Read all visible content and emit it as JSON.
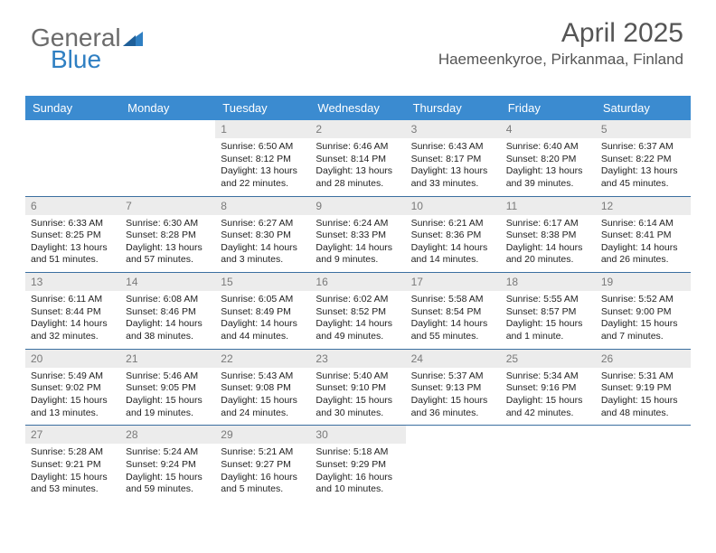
{
  "logo": {
    "word1": "General",
    "word2": "Blue",
    "word1_color": "#6b6b6b",
    "word2_color": "#2f7fc2",
    "triangle_color": "#2f7fc2"
  },
  "title": "April 2025",
  "subtitle": "Haemeenkyroe, Pirkanmaa, Finland",
  "colors": {
    "header_bg": "#3b8bd0",
    "header_text": "#ffffff",
    "row_divider": "#3b6fa0",
    "daynum_bg": "#ececec",
    "daynum_text": "#7a7a7a",
    "body_text": "#222222",
    "page_bg": "#ffffff"
  },
  "fonts": {
    "title_pt": 30,
    "subtitle_pt": 17,
    "header_pt": 13,
    "daynum_pt": 12,
    "body_pt": 10.5
  },
  "day_headers": [
    "Sunday",
    "Monday",
    "Tuesday",
    "Wednesday",
    "Thursday",
    "Friday",
    "Saturday"
  ],
  "weeks": [
    [
      {
        "empty": true
      },
      {
        "empty": true
      },
      {
        "n": "1",
        "sr": "Sunrise: 6:50 AM",
        "ss": "Sunset: 8:12 PM",
        "dl1": "Daylight: 13 hours",
        "dl2": "and 22 minutes."
      },
      {
        "n": "2",
        "sr": "Sunrise: 6:46 AM",
        "ss": "Sunset: 8:14 PM",
        "dl1": "Daylight: 13 hours",
        "dl2": "and 28 minutes."
      },
      {
        "n": "3",
        "sr": "Sunrise: 6:43 AM",
        "ss": "Sunset: 8:17 PM",
        "dl1": "Daylight: 13 hours",
        "dl2": "and 33 minutes."
      },
      {
        "n": "4",
        "sr": "Sunrise: 6:40 AM",
        "ss": "Sunset: 8:20 PM",
        "dl1": "Daylight: 13 hours",
        "dl2": "and 39 minutes."
      },
      {
        "n": "5",
        "sr": "Sunrise: 6:37 AM",
        "ss": "Sunset: 8:22 PM",
        "dl1": "Daylight: 13 hours",
        "dl2": "and 45 minutes."
      }
    ],
    [
      {
        "n": "6",
        "sr": "Sunrise: 6:33 AM",
        "ss": "Sunset: 8:25 PM",
        "dl1": "Daylight: 13 hours",
        "dl2": "and 51 minutes."
      },
      {
        "n": "7",
        "sr": "Sunrise: 6:30 AM",
        "ss": "Sunset: 8:28 PM",
        "dl1": "Daylight: 13 hours",
        "dl2": "and 57 minutes."
      },
      {
        "n": "8",
        "sr": "Sunrise: 6:27 AM",
        "ss": "Sunset: 8:30 PM",
        "dl1": "Daylight: 14 hours",
        "dl2": "and 3 minutes."
      },
      {
        "n": "9",
        "sr": "Sunrise: 6:24 AM",
        "ss": "Sunset: 8:33 PM",
        "dl1": "Daylight: 14 hours",
        "dl2": "and 9 minutes."
      },
      {
        "n": "10",
        "sr": "Sunrise: 6:21 AM",
        "ss": "Sunset: 8:36 PM",
        "dl1": "Daylight: 14 hours",
        "dl2": "and 14 minutes."
      },
      {
        "n": "11",
        "sr": "Sunrise: 6:17 AM",
        "ss": "Sunset: 8:38 PM",
        "dl1": "Daylight: 14 hours",
        "dl2": "and 20 minutes."
      },
      {
        "n": "12",
        "sr": "Sunrise: 6:14 AM",
        "ss": "Sunset: 8:41 PM",
        "dl1": "Daylight: 14 hours",
        "dl2": "and 26 minutes."
      }
    ],
    [
      {
        "n": "13",
        "sr": "Sunrise: 6:11 AM",
        "ss": "Sunset: 8:44 PM",
        "dl1": "Daylight: 14 hours",
        "dl2": "and 32 minutes."
      },
      {
        "n": "14",
        "sr": "Sunrise: 6:08 AM",
        "ss": "Sunset: 8:46 PM",
        "dl1": "Daylight: 14 hours",
        "dl2": "and 38 minutes."
      },
      {
        "n": "15",
        "sr": "Sunrise: 6:05 AM",
        "ss": "Sunset: 8:49 PM",
        "dl1": "Daylight: 14 hours",
        "dl2": "and 44 minutes."
      },
      {
        "n": "16",
        "sr": "Sunrise: 6:02 AM",
        "ss": "Sunset: 8:52 PM",
        "dl1": "Daylight: 14 hours",
        "dl2": "and 49 minutes."
      },
      {
        "n": "17",
        "sr": "Sunrise: 5:58 AM",
        "ss": "Sunset: 8:54 PM",
        "dl1": "Daylight: 14 hours",
        "dl2": "and 55 minutes."
      },
      {
        "n": "18",
        "sr": "Sunrise: 5:55 AM",
        "ss": "Sunset: 8:57 PM",
        "dl1": "Daylight: 15 hours",
        "dl2": "and 1 minute."
      },
      {
        "n": "19",
        "sr": "Sunrise: 5:52 AM",
        "ss": "Sunset: 9:00 PM",
        "dl1": "Daylight: 15 hours",
        "dl2": "and 7 minutes."
      }
    ],
    [
      {
        "n": "20",
        "sr": "Sunrise: 5:49 AM",
        "ss": "Sunset: 9:02 PM",
        "dl1": "Daylight: 15 hours",
        "dl2": "and 13 minutes."
      },
      {
        "n": "21",
        "sr": "Sunrise: 5:46 AM",
        "ss": "Sunset: 9:05 PM",
        "dl1": "Daylight: 15 hours",
        "dl2": "and 19 minutes."
      },
      {
        "n": "22",
        "sr": "Sunrise: 5:43 AM",
        "ss": "Sunset: 9:08 PM",
        "dl1": "Daylight: 15 hours",
        "dl2": "and 24 minutes."
      },
      {
        "n": "23",
        "sr": "Sunrise: 5:40 AM",
        "ss": "Sunset: 9:10 PM",
        "dl1": "Daylight: 15 hours",
        "dl2": "and 30 minutes."
      },
      {
        "n": "24",
        "sr": "Sunrise: 5:37 AM",
        "ss": "Sunset: 9:13 PM",
        "dl1": "Daylight: 15 hours",
        "dl2": "and 36 minutes."
      },
      {
        "n": "25",
        "sr": "Sunrise: 5:34 AM",
        "ss": "Sunset: 9:16 PM",
        "dl1": "Daylight: 15 hours",
        "dl2": "and 42 minutes."
      },
      {
        "n": "26",
        "sr": "Sunrise: 5:31 AM",
        "ss": "Sunset: 9:19 PM",
        "dl1": "Daylight: 15 hours",
        "dl2": "and 48 minutes."
      }
    ],
    [
      {
        "n": "27",
        "sr": "Sunrise: 5:28 AM",
        "ss": "Sunset: 9:21 PM",
        "dl1": "Daylight: 15 hours",
        "dl2": "and 53 minutes."
      },
      {
        "n": "28",
        "sr": "Sunrise: 5:24 AM",
        "ss": "Sunset: 9:24 PM",
        "dl1": "Daylight: 15 hours",
        "dl2": "and 59 minutes."
      },
      {
        "n": "29",
        "sr": "Sunrise: 5:21 AM",
        "ss": "Sunset: 9:27 PM",
        "dl1": "Daylight: 16 hours",
        "dl2": "and 5 minutes."
      },
      {
        "n": "30",
        "sr": "Sunrise: 5:18 AM",
        "ss": "Sunset: 9:29 PM",
        "dl1": "Daylight: 16 hours",
        "dl2": "and 10 minutes."
      },
      {
        "empty": true
      },
      {
        "empty": true
      },
      {
        "empty": true
      }
    ]
  ]
}
